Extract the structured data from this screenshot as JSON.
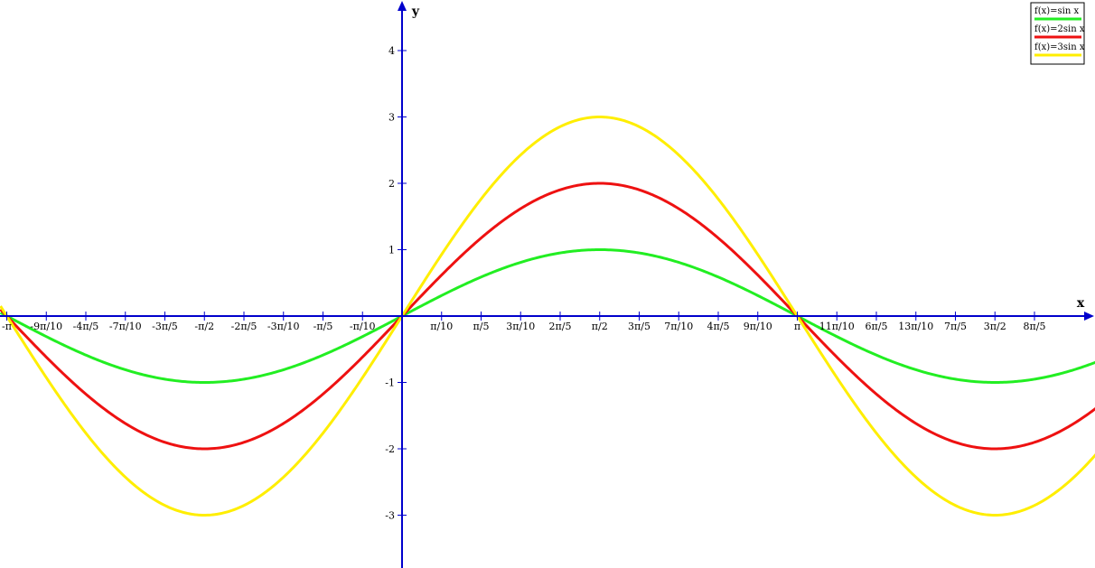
{
  "chart_data": {
    "type": "line",
    "xlabel": "x",
    "ylabel": "y",
    "xlim": [
      -3.1416,
      5.2622
    ],
    "ylim": [
      -3.7,
      4.7
    ],
    "x_ticks": [
      {
        "value": -3.1416,
        "label": "-π"
      },
      {
        "value": -2.8274,
        "label": "-9π/10"
      },
      {
        "value": -2.5133,
        "label": "-4π/5"
      },
      {
        "value": -2.1991,
        "label": "-7π/10"
      },
      {
        "value": -1.885,
        "label": "-3π/5"
      },
      {
        "value": -1.5708,
        "label": "-π/2"
      },
      {
        "value": -1.2566,
        "label": "-2π/5"
      },
      {
        "value": -0.9425,
        "label": "-3π/10"
      },
      {
        "value": -0.6283,
        "label": "-π/5"
      },
      {
        "value": -0.3142,
        "label": "-π/10"
      },
      {
        "value": 0.3142,
        "label": "π/10"
      },
      {
        "value": 0.6283,
        "label": "π/5"
      },
      {
        "value": 0.9425,
        "label": "3π/10"
      },
      {
        "value": 1.2566,
        "label": "2π/5"
      },
      {
        "value": 1.5708,
        "label": "π/2"
      },
      {
        "value": 1.885,
        "label": "3π/5"
      },
      {
        "value": 2.1991,
        "label": "7π/10"
      },
      {
        "value": 2.5133,
        "label": "4π/5"
      },
      {
        "value": 2.8274,
        "label": "9π/10"
      },
      {
        "value": 3.1416,
        "label": "π"
      },
      {
        "value": 3.4558,
        "label": "11π/10"
      },
      {
        "value": 3.7699,
        "label": "6π/5"
      },
      {
        "value": 4.0841,
        "label": "13π/10"
      },
      {
        "value": 4.3982,
        "label": "7π/5"
      },
      {
        "value": 4.7124,
        "label": "3π/2"
      },
      {
        "value": 5.0265,
        "label": "8π/5"
      }
    ],
    "y_ticks": [
      {
        "value": 4,
        "label": "4"
      },
      {
        "value": 3,
        "label": "3"
      },
      {
        "value": 2,
        "label": "2"
      },
      {
        "value": 1,
        "label": "1"
      },
      {
        "value": -1,
        "label": "-1"
      },
      {
        "value": -2,
        "label": "-2"
      },
      {
        "value": -3,
        "label": "-3"
      }
    ],
    "series": [
      {
        "name": "f(x)=sin x",
        "amplitude": 1,
        "color": "#22ee22"
      },
      {
        "name": "f(x)=2sin x",
        "amplitude": 2,
        "color": "#ee1111"
      },
      {
        "name": "f(x)=3sin x",
        "amplitude": 3,
        "color": "#ffee00"
      }
    ],
    "grid": false,
    "legend_position": "top-right",
    "axis_color": "#0000cc"
  }
}
